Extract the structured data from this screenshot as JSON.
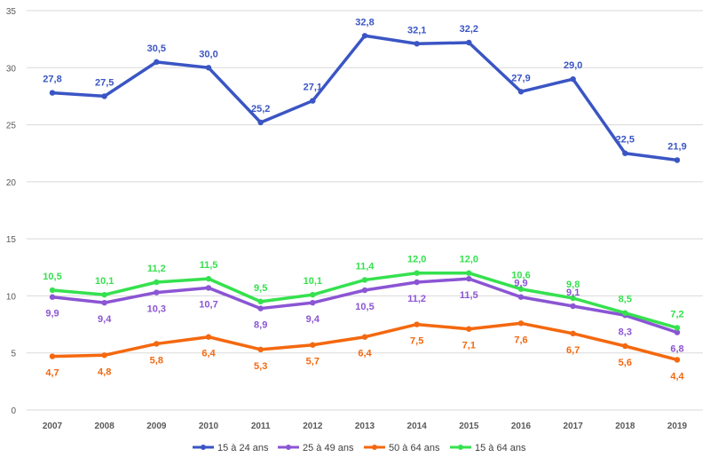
{
  "chart_data": {
    "type": "line",
    "title": "",
    "xlabel": "",
    "ylabel": "",
    "ylim": [
      0,
      35
    ],
    "yticks": [
      "0",
      "5",
      "10",
      "15",
      "20",
      "25",
      "30",
      "35"
    ],
    "categories": [
      "2007",
      "2008",
      "2009",
      "2010",
      "2011",
      "2012",
      "2013",
      "2014",
      "2015",
      "2016",
      "2017",
      "2018",
      "2019"
    ],
    "grid": true,
    "legend_position": "bottom",
    "series": [
      {
        "name": "15 à 24 ans",
        "color": "#3a55c4",
        "values": [
          27.8,
          27.5,
          30.5,
          30.0,
          25.2,
          27.1,
          32.8,
          32.1,
          32.2,
          27.9,
          29.0,
          22.5,
          21.9
        ],
        "labels": [
          "27,8",
          "27,5",
          "30,5",
          "30,0",
          "25,2",
          "27,1",
          "32,8",
          "32,1",
          "32,2",
          "27,9",
          "29,0",
          "22,5",
          "21,9"
        ],
        "label_side": [
          "above",
          "above",
          "above",
          "above",
          "above",
          "above",
          "above",
          "above",
          "above",
          "above",
          "above",
          "above",
          "above"
        ]
      },
      {
        "name": "25 à 49 ans",
        "color": "#8b55d4",
        "values": [
          9.9,
          9.4,
          10.3,
          10.7,
          8.9,
          9.4,
          10.5,
          11.2,
          11.5,
          9.9,
          9.1,
          8.3,
          6.8
        ],
        "labels": [
          "9,9",
          "9,4",
          "10,3",
          "10,7",
          "8,9",
          "9,4",
          "10,5",
          "11,2",
          "11,5",
          "9,9",
          "9,1",
          "8,3",
          "6,8"
        ],
        "label_side": [
          "below",
          "below",
          "below",
          "below",
          "below",
          "below",
          "below",
          "below",
          "below",
          "above",
          "above",
          "below",
          "below"
        ]
      },
      {
        "name": "50 à 64 ans",
        "color": "#f4680f",
        "values": [
          4.7,
          4.8,
          5.8,
          6.4,
          5.3,
          5.7,
          6.4,
          7.5,
          7.1,
          7.6,
          6.7,
          5.6,
          4.4
        ],
        "labels": [
          "4,7",
          "4,8",
          "5,8",
          "6,4",
          "5,3",
          "5,7",
          "6,4",
          "7,5",
          "7,1",
          "7,6",
          "6,7",
          "5,6",
          "4,4"
        ],
        "label_side": [
          "below",
          "below",
          "below",
          "below",
          "below",
          "below",
          "below",
          "below",
          "below",
          "below",
          "below",
          "below",
          "below"
        ]
      },
      {
        "name": "15 à 64 ans",
        "color": "#35e14e",
        "values": [
          10.5,
          10.1,
          11.2,
          11.5,
          9.5,
          10.1,
          11.4,
          12.0,
          12.0,
          10.6,
          9.8,
          8.5,
          7.2
        ],
        "labels": [
          "10,5",
          "10,1",
          "11,2",
          "11,5",
          "9,5",
          "10,1",
          "11,4",
          "12,0",
          "12,0",
          "10,6",
          "9,8",
          "8,5",
          "7,2"
        ],
        "label_side": [
          "above",
          "above",
          "above",
          "above",
          "above",
          "above",
          "above",
          "above",
          "above",
          "above",
          "above",
          "above",
          "above"
        ]
      }
    ]
  }
}
